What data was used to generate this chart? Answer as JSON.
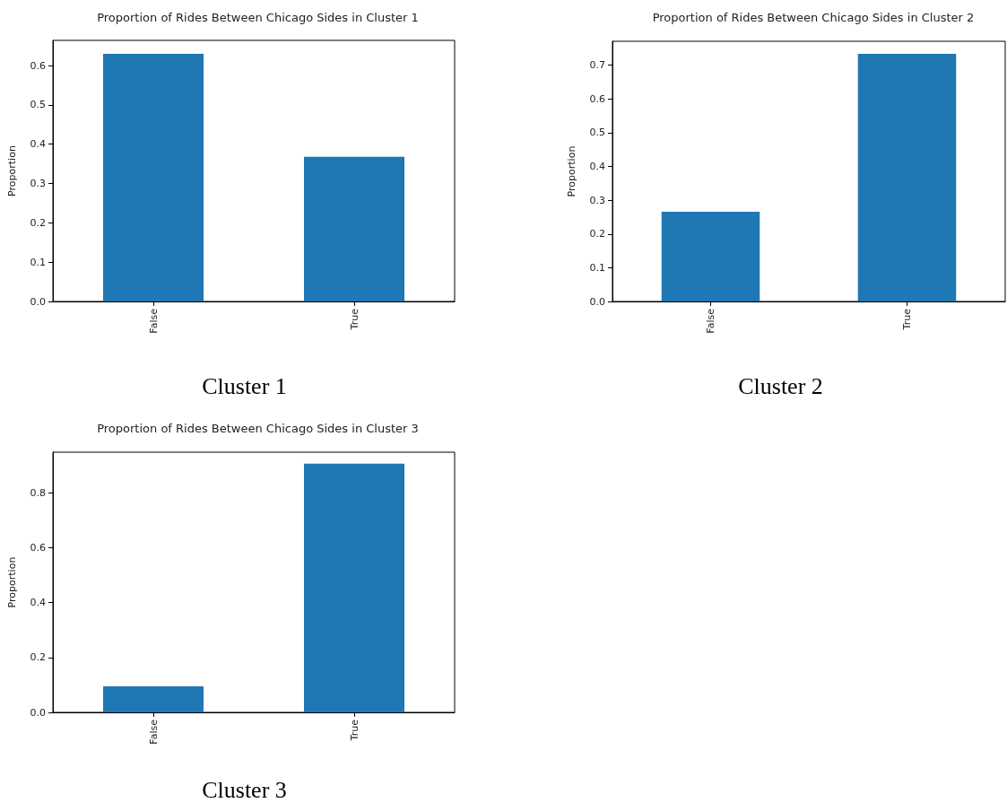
{
  "chart_data": [
    {
      "type": "bar",
      "title": "Proportion of Rides Between Chicago Sides in Cluster 1",
      "ylabel": "Proportion",
      "categories": [
        "False",
        "True"
      ],
      "values": [
        0.63,
        0.368
      ],
      "color": "#1f77b4",
      "ylim": [
        0,
        0.664
      ],
      "yticks": [
        {
          "value": 0,
          "label": "0.0"
        },
        {
          "value": 0.1,
          "label": "0.1"
        },
        {
          "value": 0.2,
          "label": "0.2"
        },
        {
          "value": 0.3,
          "label": "0.3"
        },
        {
          "value": 0.4,
          "label": "0.4"
        },
        {
          "value": 0.5,
          "label": "0.5"
        },
        {
          "value": 0.6,
          "label": "0.6"
        }
      ],
      "grid": false,
      "annotations": [
        "Cluster 1"
      ]
    },
    {
      "type": "bar",
      "title": "Proportion of Rides Between Chicago Sides in Cluster 2",
      "ylabel": "Proportion",
      "categories": [
        "False",
        "True"
      ],
      "values": [
        0.266,
        0.734
      ],
      "color": "#1f77b4",
      "ylim": [
        0,
        0.771
      ],
      "yticks": [
        {
          "value": 0,
          "label": "0.0"
        },
        {
          "value": 0.1,
          "label": "0.1"
        },
        {
          "value": 0.2,
          "label": "0.2"
        },
        {
          "value": 0.3,
          "label": "0.3"
        },
        {
          "value": 0.4,
          "label": "0.4"
        },
        {
          "value": 0.5,
          "label": "0.5"
        },
        {
          "value": 0.6,
          "label": "0.6"
        },
        {
          "value": 0.7,
          "label": "0.7"
        }
      ],
      "grid": false,
      "annotations": [
        "Cluster 2"
      ]
    },
    {
      "type": "bar",
      "title": "Proportion of Rides Between Chicago Sides in Cluster 3",
      "ylabel": "Proportion",
      "categories": [
        "False",
        "True"
      ],
      "values": [
        0.095,
        0.905
      ],
      "color": "#1f77b4",
      "ylim": [
        0,
        0.947
      ],
      "yticks": [
        {
          "value": 0,
          "label": "0.0"
        },
        {
          "value": 0.2,
          "label": "0.2"
        },
        {
          "value": 0.4,
          "label": "0.4"
        },
        {
          "value": 0.6,
          "label": "0.6"
        },
        {
          "value": 0.8,
          "label": "0.8"
        }
      ],
      "grid": false,
      "annotations": [
        "Cluster 3"
      ]
    }
  ]
}
